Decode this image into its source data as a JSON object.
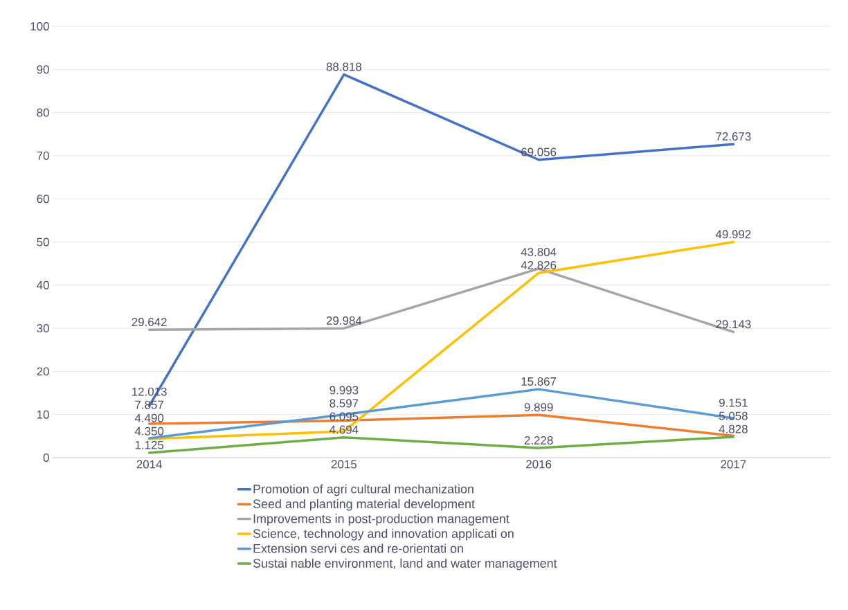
{
  "chart_data": {
    "type": "line",
    "categories": [
      "2014",
      "2015",
      "2016",
      "2017"
    ],
    "series": [
      {
        "name": "Promotion of agri cultural mechanization",
        "color": "#4472c4",
        "values": [
          12.013,
          88.818,
          69.056,
          72.673
        ],
        "value_labels": [
          "12.013",
          "88.818",
          "69.056",
          "72.673"
        ]
      },
      {
        "name": "Seed and planting material development",
        "color": "#ed7d31",
        "values": [
          7.857,
          8.597,
          9.899,
          5.058
        ],
        "value_labels": [
          "7.857",
          "8.597",
          "9.899",
          "5.058"
        ]
      },
      {
        "name": "Improvements in post-production management",
        "color": "#a5a5a5",
        "values": [
          29.642,
          29.984,
          43.804,
          29.143
        ],
        "value_labels": [
          "29.642",
          "29.984",
          "43.804",
          "29.143"
        ]
      },
      {
        "name": "Science, technology and innovation applicati on",
        "color": "#ffc000",
        "values": [
          4.35,
          6.095,
          42.826,
          49.992
        ],
        "value_labels": [
          "4.350",
          "6.095",
          "42.826",
          "49.992"
        ]
      },
      {
        "name": "Extension servi ces and re-orientati on",
        "color": "#5b9bd5",
        "values": [
          4.49,
          9.993,
          15.867,
          9.151
        ],
        "value_labels": [
          "4.490",
          "9.993",
          "15.867",
          "9.151"
        ]
      },
      {
        "name": "Sustai nable environment, land and water management",
        "color": "#70ad47",
        "values": [
          1.125,
          4.694,
          2.228,
          4.828
        ],
        "value_labels": [
          "1.125",
          "4.694",
          "2.228",
          "4.828"
        ]
      }
    ],
    "ylim": [
      0,
      100
    ],
    "yticks": [
      0,
      10,
      20,
      30,
      40,
      50,
      60,
      70,
      80,
      90,
      100
    ],
    "grid": "y",
    "legend": "bottom",
    "marker": "none",
    "line_style": "solid"
  }
}
